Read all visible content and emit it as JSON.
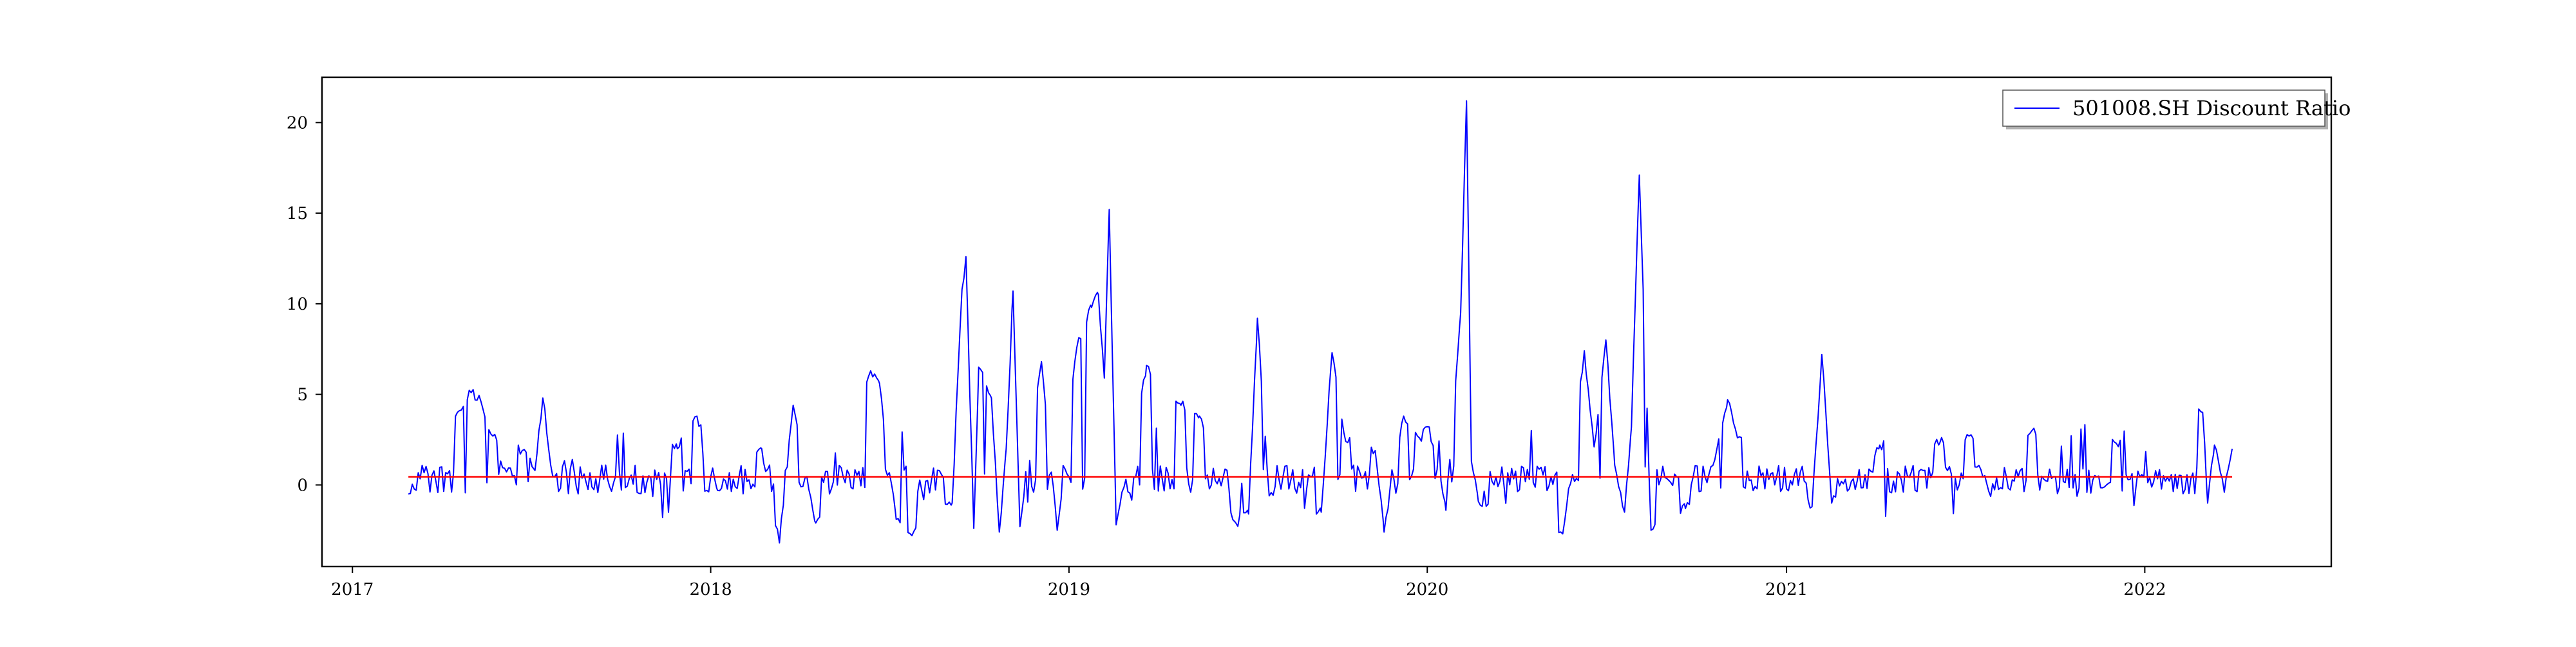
{
  "chart_data": {
    "type": "line",
    "title": "",
    "xlabel": "",
    "ylabel": "",
    "xlim": [
      "2016-12-01",
      "2022-07-10"
    ],
    "ylim": [
      -4.5,
      22.5
    ],
    "x_ticks": [
      "2017",
      "2018",
      "2019",
      "2020",
      "2021",
      "2022"
    ],
    "y_ticks": [
      "0",
      "5",
      "10",
      "15",
      "20"
    ],
    "grid": false,
    "legend_position": "top-right",
    "series": [
      {
        "name": "501008.SH Discount Ratio",
        "color": "#0000ff",
        "x_start": "2017-02-27",
        "x_end": "2022-03-31",
        "baseline_amplitude": 0.8,
        "points": [
          [
            "2017-02-27",
            -0.5
          ],
          [
            "2017-04-20",
            4.1
          ],
          [
            "2017-05-02",
            5.1
          ],
          [
            "2017-05-12",
            4.6
          ],
          [
            "2017-05-24",
            2.7
          ],
          [
            "2017-06-23",
            1.9
          ],
          [
            "2017-07-06",
            0.8
          ],
          [
            "2017-07-14",
            4.8
          ],
          [
            "2017-07-24",
            0.5
          ],
          [
            "2017-11-28",
            2.0
          ],
          [
            "2017-12-18",
            3.8
          ],
          [
            "2018-01-08",
            -0.3
          ],
          [
            "2018-02-22",
            2.0
          ],
          [
            "2018-03-12",
            -3.2
          ],
          [
            "2018-03-26",
            4.4
          ],
          [
            "2018-04-18",
            -2.1
          ],
          [
            "2018-06-13",
            6.3
          ],
          [
            "2018-06-22",
            5.6
          ],
          [
            "2018-07-09",
            -1.9
          ],
          [
            "2018-07-25",
            -2.8
          ],
          [
            "2018-09-04",
            -1.0
          ],
          [
            "2018-09-14",
            10.8
          ],
          [
            "2018-09-18",
            12.6
          ],
          [
            "2018-09-26",
            -2.4
          ],
          [
            "2018-10-01",
            6.5
          ],
          [
            "2018-10-14",
            4.8
          ],
          [
            "2018-10-22",
            -2.6
          ],
          [
            "2018-10-29",
            2.0
          ],
          [
            "2018-11-05",
            10.7
          ],
          [
            "2018-11-12",
            -2.3
          ],
          [
            "2018-12-04",
            6.8
          ],
          [
            "2018-12-20",
            -2.5
          ],
          [
            "2019-01-09",
            7.6
          ],
          [
            "2019-01-24",
            9.8
          ],
          [
            "2019-01-31",
            10.5
          ],
          [
            "2019-02-06",
            5.9
          ],
          [
            "2019-02-11",
            15.2
          ],
          [
            "2019-02-18",
            -2.2
          ],
          [
            "2019-03-21",
            6.6
          ],
          [
            "2019-04-25",
            4.4
          ],
          [
            "2019-05-14",
            3.8
          ],
          [
            "2019-06-20",
            -2.1
          ],
          [
            "2019-07-03",
            -1.6
          ],
          [
            "2019-07-12",
            9.2
          ],
          [
            "2019-07-24",
            -0.6
          ],
          [
            "2019-09-15",
            -1.5
          ],
          [
            "2019-09-26",
            7.3
          ],
          [
            "2019-10-10",
            2.4
          ],
          [
            "2019-11-09",
            1.9
          ],
          [
            "2019-11-18",
            -2.6
          ],
          [
            "2019-12-08",
            3.8
          ],
          [
            "2019-12-24",
            2.6
          ],
          [
            "2020-01-03",
            3.2
          ],
          [
            "2020-01-20",
            -1.4
          ],
          [
            "2020-02-04",
            9.5
          ],
          [
            "2020-02-10",
            21.2
          ],
          [
            "2020-02-15",
            1.3
          ],
          [
            "2020-02-22",
            -0.9
          ],
          [
            "2020-05-18",
            -2.7
          ],
          [
            "2020-06-09",
            7.4
          ],
          [
            "2020-06-19",
            2.1
          ],
          [
            "2020-07-01",
            8.0
          ],
          [
            "2020-07-10",
            1.1
          ],
          [
            "2020-07-20",
            -1.5
          ],
          [
            "2020-07-27",
            3.2
          ],
          [
            "2020-08-04",
            17.1
          ],
          [
            "2020-08-16",
            -2.5
          ],
          [
            "2020-09-20",
            -1.3
          ],
          [
            "2020-10-20",
            1.4
          ],
          [
            "2020-11-02",
            4.7
          ],
          [
            "2020-11-12",
            2.6
          ],
          [
            "2021-01-27",
            -1.2
          ],
          [
            "2021-02-06",
            7.2
          ],
          [
            "2021-02-16",
            -1.0
          ],
          [
            "2021-04-06",
            2.2
          ],
          [
            "2021-06-06",
            2.3
          ],
          [
            "2021-07-06",
            2.7
          ],
          [
            "2021-09-08",
            3.0
          ],
          [
            "2021-12-03",
            2.3
          ],
          [
            "2022-03-01",
            4.0
          ],
          [
            "2022-03-06",
            -1.0
          ],
          [
            "2022-03-13",
            2.2
          ],
          [
            "2022-03-23",
            -0.4
          ],
          [
            "2022-03-31",
            2.0
          ]
        ]
      },
      {
        "name": "",
        "color": "#ff0000",
        "points": [
          [
            "2017-02-27",
            0.45
          ],
          [
            "2022-03-31",
            0.45
          ]
        ]
      }
    ]
  }
}
